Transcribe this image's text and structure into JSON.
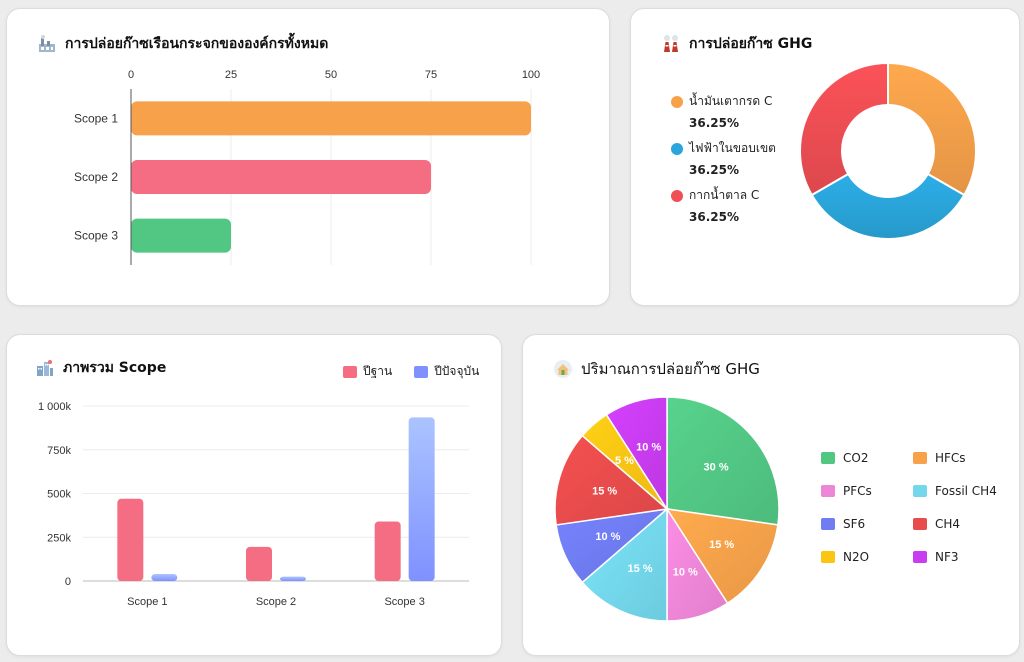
{
  "cards": {
    "org_emissions": {
      "title": "การปล่อยก๊าซเรือนกระจกขององค์กรทั้งหมด",
      "icon": "factory-icon"
    },
    "ghg_emissions": {
      "title": "การปล่อยก๊าซ GHG",
      "icon": "power-plant-icon"
    },
    "scope_overview": {
      "title": "ภาพรวม Scope",
      "icon": "city-icon"
    },
    "ghg_quantity": {
      "title": "ปริมาณการปล่อยก๊าซ GHG",
      "icon": "house-icon"
    }
  },
  "chart_data": [
    {
      "type": "bar",
      "orientation": "horizontal",
      "categories": [
        "Scope 1",
        "Scope 2",
        "Scope 3"
      ],
      "values": [
        100,
        75,
        25
      ],
      "xlim": [
        0,
        100
      ],
      "xticks": [
        "0",
        "25",
        "50",
        "75",
        "100"
      ],
      "colors": [
        "#f7a14a",
        "#f56d83",
        "#52c784"
      ],
      "grid": true,
      "xaxis_position": "top"
    },
    {
      "type": "pie",
      "variant": "doughnut",
      "labels": [
        "น้ำมันเตากรด C",
        "ไฟฟ้าในขอบเขต",
        "กากน้ำตาล C"
      ],
      "values": [
        36.25,
        36.25,
        36.25
      ],
      "value_labels": [
        "36.25%",
        "36.25%",
        "36.25%"
      ],
      "colors": [
        "#f7a14a",
        "#2aa6dc",
        "#ef4e54"
      ],
      "legend": "left"
    },
    {
      "type": "bar",
      "categories": [
        "Scope 1",
        "Scope 2",
        "Scope 3"
      ],
      "series": [
        {
          "name": "ปีฐาน",
          "values": [
            470000,
            195000,
            340000
          ],
          "color": "#f56d83"
        },
        {
          "name": "ปีปัจจุบัน",
          "values": [
            40000,
            25000,
            935000
          ],
          "color": "#7f91ff"
        }
      ],
      "ylim": [
        0,
        1000000
      ],
      "yticks": [
        {
          "v": 0,
          "l": "0"
        },
        {
          "v": 250000,
          "l": "250k"
        },
        {
          "v": 500000,
          "l": "500k"
        },
        {
          "v": 750000,
          "l": "750k"
        },
        {
          "v": 1000000,
          "l": "1 000k"
        }
      ],
      "grid": true,
      "legend": "top-right"
    },
    {
      "type": "pie",
      "labels": [
        "CO2",
        "HFCs",
        "PFCs",
        "Fossil CH4",
        "SF6",
        "CH4",
        "N2O",
        "NF3"
      ],
      "values": [
        30,
        15,
        10,
        15,
        10,
        15,
        5,
        10
      ],
      "value_labels": [
        "30 %",
        "15 %",
        "10 %",
        "15 %",
        "10 %",
        "15 %",
        "5 %",
        "10 %"
      ],
      "colors": [
        "#52c784",
        "#f7a14a",
        "#ee86d8",
        "#74d8ec",
        "#6f7cf2",
        "#e84b4b",
        "#fcc514",
        "#c93cf0"
      ],
      "legend": "right"
    }
  ]
}
